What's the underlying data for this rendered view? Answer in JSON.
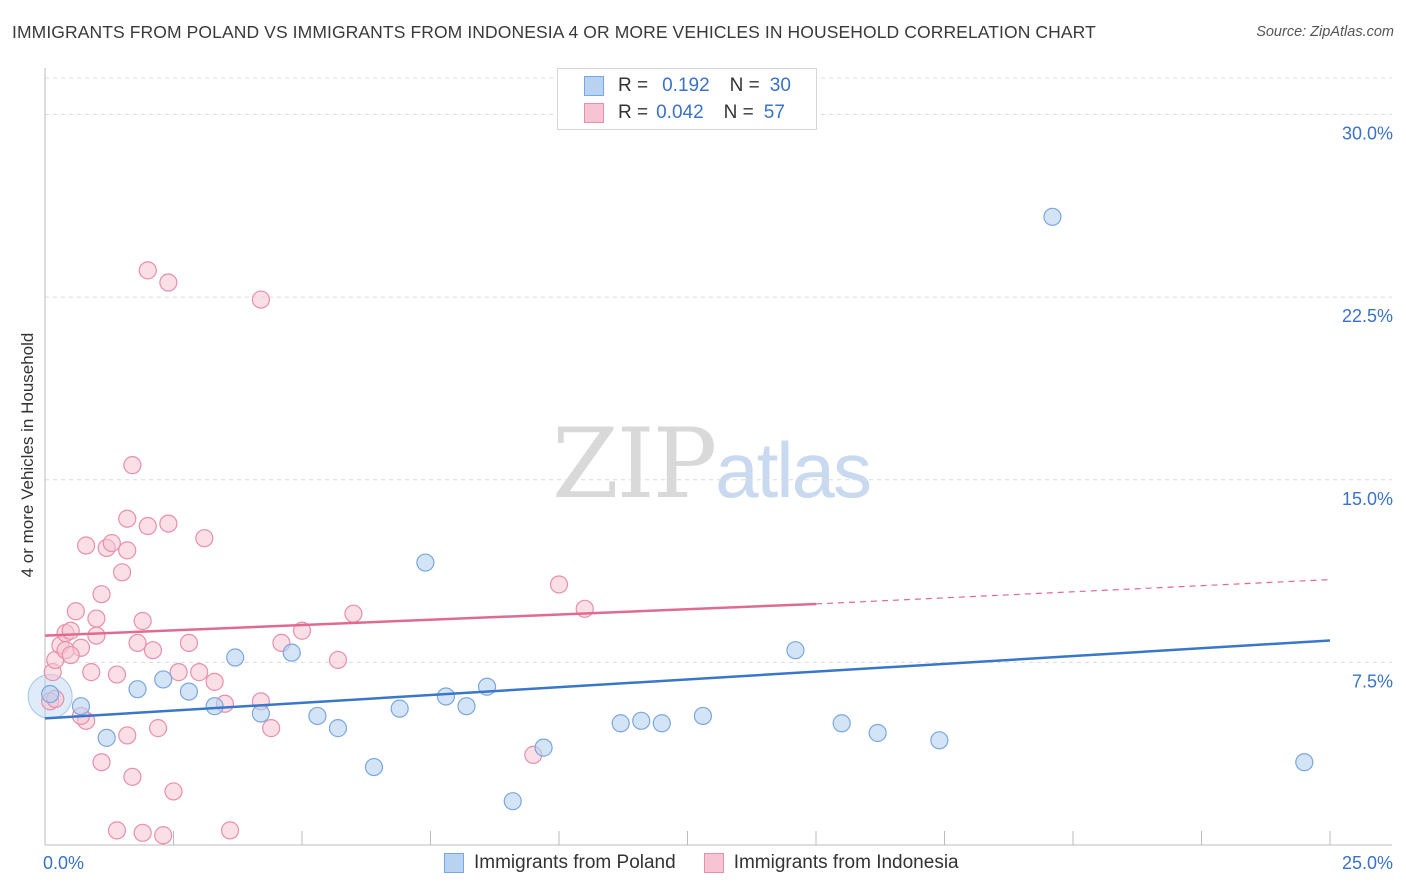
{
  "title": "IMMIGRANTS FROM POLAND VS IMMIGRANTS FROM INDONESIA 4 OR MORE VEHICLES IN HOUSEHOLD CORRELATION CHART",
  "source": "Source: ZipAtlas.com",
  "watermark": {
    "zip": "ZIP",
    "atlas": "atlas"
  },
  "legend": {
    "rows": [
      {
        "r_label": "R =",
        "r_value": "0.192",
        "n_label": "N =",
        "n_value": "30"
      },
      {
        "r_label": "R =",
        "r_value": "0.042",
        "n_label": "N =",
        "n_value": "57"
      }
    ]
  },
  "colors": {
    "poland_fill": "#b8d2f2",
    "poland_stroke": "#7aa7de",
    "poland_line": "#3a77c9",
    "indonesia_fill": "#f6c4d3",
    "indonesia_stroke": "#e98fab",
    "indonesia_line": "#e06b92",
    "tick_label": "#3a72c8",
    "grid": "#dcdcdc"
  },
  "chart_data": {
    "type": "scatter",
    "title": "IMMIGRANTS FROM POLAND VS IMMIGRANTS FROM INDONESIA 4 OR MORE VEHICLES IN HOUSEHOLD CORRELATION CHART",
    "xlabel": "",
    "ylabel": "4 or more Vehicles in Household",
    "xlim": [
      0,
      25
    ],
    "ylim": [
      0,
      31.5
    ],
    "x_tick_labels": [
      "0.0%",
      "25.0%"
    ],
    "y_ticks": [
      7.5,
      15.0,
      22.5,
      30.0
    ],
    "y_tick_labels": [
      "7.5%",
      "15.0%",
      "22.5%",
      "30.0%"
    ],
    "grid": true,
    "legend_position": "top-center",
    "series": [
      {
        "name": "Immigrants from Poland",
        "points": [
          [
            0.1,
            6.2
          ],
          [
            0.7,
            5.7
          ],
          [
            1.2,
            4.4
          ],
          [
            1.8,
            6.4
          ],
          [
            2.3,
            6.8
          ],
          [
            2.8,
            6.3
          ],
          [
            3.3,
            5.7
          ],
          [
            3.7,
            7.7
          ],
          [
            4.2,
            5.4
          ],
          [
            4.8,
            7.9
          ],
          [
            5.3,
            5.3
          ],
          [
            5.7,
            4.8
          ],
          [
            6.4,
            3.2
          ],
          [
            6.9,
            5.6
          ],
          [
            7.4,
            11.6
          ],
          [
            7.8,
            6.1
          ],
          [
            8.2,
            5.7
          ],
          [
            8.6,
            6.5
          ],
          [
            9.1,
            1.8
          ],
          [
            9.7,
            4.0
          ],
          [
            11.2,
            5.0
          ],
          [
            11.6,
            5.1
          ],
          [
            12.0,
            5.0
          ],
          [
            12.8,
            5.3
          ],
          [
            14.6,
            8.0
          ],
          [
            15.5,
            5.0
          ],
          [
            16.2,
            4.6
          ],
          [
            17.4,
            4.3
          ],
          [
            19.6,
            25.8
          ],
          [
            24.5,
            3.4
          ]
        ],
        "trend": {
          "x": [
            0,
            25
          ],
          "y": [
            5.2,
            8.4
          ]
        }
      },
      {
        "name": "Immigrants from Indonesia",
        "points": [
          [
            0.1,
            5.9
          ],
          [
            0.15,
            7.1
          ],
          [
            0.2,
            7.6
          ],
          [
            0.3,
            8.2
          ],
          [
            0.4,
            8.7
          ],
          [
            0.5,
            8.8
          ],
          [
            0.6,
            9.6
          ],
          [
            0.7,
            8.1
          ],
          [
            0.8,
            5.1
          ],
          [
            0.9,
            7.1
          ],
          [
            1.0,
            9.3
          ],
          [
            1.1,
            10.3
          ],
          [
            1.2,
            12.2
          ],
          [
            1.3,
            12.4
          ],
          [
            1.4,
            7.0
          ],
          [
            1.5,
            11.2
          ],
          [
            1.6,
            13.4
          ],
          [
            1.7,
            2.8
          ],
          [
            1.8,
            8.3
          ],
          [
            1.9,
            9.2
          ],
          [
            2.0,
            13.1
          ],
          [
            2.1,
            8.0
          ],
          [
            2.2,
            4.8
          ],
          [
            2.4,
            13.2
          ],
          [
            2.5,
            2.2
          ],
          [
            2.6,
            7.1
          ],
          [
            2.8,
            8.3
          ],
          [
            3.1,
            12.6
          ],
          [
            3.3,
            6.7
          ],
          [
            3.5,
            5.8
          ],
          [
            2.0,
            23.6
          ],
          [
            2.4,
            23.1
          ],
          [
            4.2,
            22.4
          ],
          [
            1.7,
            15.6
          ],
          [
            0.2,
            6.0
          ],
          [
            0.4,
            8.0
          ],
          [
            0.7,
            5.3
          ],
          [
            1.1,
            3.4
          ],
          [
            1.6,
            4.5
          ],
          [
            2.3,
            0.4
          ],
          [
            1.4,
            0.6
          ],
          [
            1.9,
            0.5
          ],
          [
            3.6,
            0.6
          ],
          [
            4.4,
            4.8
          ],
          [
            4.6,
            8.3
          ],
          [
            5.0,
            8.8
          ],
          [
            5.7,
            7.6
          ],
          [
            6.0,
            9.5
          ],
          [
            9.5,
            3.7
          ],
          [
            10.0,
            10.7
          ],
          [
            10.5,
            9.7
          ],
          [
            1.0,
            8.6
          ],
          [
            0.8,
            12.3
          ],
          [
            0.5,
            7.8
          ],
          [
            1.6,
            12.1
          ],
          [
            3.0,
            7.1
          ],
          [
            4.2,
            5.9
          ]
        ],
        "trend": {
          "x": [
            0,
            15
          ],
          "y": [
            8.6,
            9.9
          ]
        },
        "trend_dashed": {
          "x": [
            15,
            25
          ],
          "y": [
            9.9,
            10.9
          ]
        }
      }
    ]
  },
  "bottom_legend": [
    "Immigrants from Poland",
    "Immigrants from Indonesia"
  ]
}
